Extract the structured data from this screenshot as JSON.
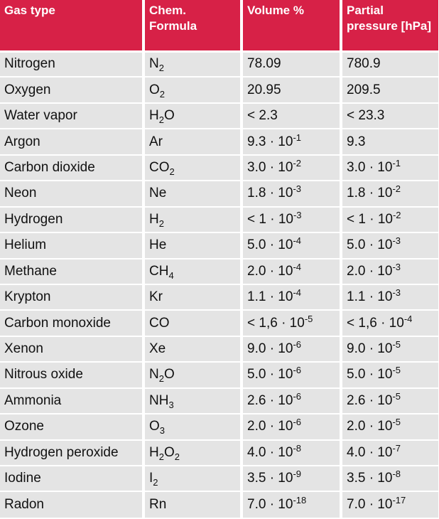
{
  "table": {
    "headers": [
      "Gas type",
      "Chem. Formula",
      "Volume %",
      "Partial pressure [hPa]"
    ],
    "rows": [
      {
        "gas": "Nitrogen",
        "formula": [
          [
            "t",
            "N"
          ],
          [
            "sub",
            "2"
          ]
        ],
        "volume": [
          [
            "t",
            "78.09"
          ]
        ],
        "pressure": [
          [
            "t",
            "780.9"
          ]
        ]
      },
      {
        "gas": "Oxygen",
        "formula": [
          [
            "t",
            "O"
          ],
          [
            "sub",
            "2"
          ]
        ],
        "volume": [
          [
            "t",
            "20.95"
          ]
        ],
        "pressure": [
          [
            "t",
            "209.5"
          ]
        ]
      },
      {
        "gas": "Water vapor",
        "formula": [
          [
            "t",
            "H"
          ],
          [
            "sub",
            "2"
          ],
          [
            "t",
            "O"
          ]
        ],
        "volume": [
          [
            "t",
            " < 2.3"
          ]
        ],
        "pressure": [
          [
            "t",
            "< 23.3"
          ]
        ]
      },
      {
        "gas": "Argon",
        "formula": [
          [
            "t",
            "Ar"
          ]
        ],
        "volume": [
          [
            "t",
            "9.3 · 10"
          ],
          [
            "sup",
            "-1"
          ]
        ],
        "pressure": [
          [
            "t",
            "9.3"
          ]
        ]
      },
      {
        "gas": "Carbon dioxide",
        "formula": [
          [
            "t",
            "CO"
          ],
          [
            "sub",
            "2"
          ]
        ],
        "volume": [
          [
            "t",
            "3.0 · 10"
          ],
          [
            "sup",
            "-2"
          ]
        ],
        "pressure": [
          [
            "t",
            "3.0 · 10"
          ],
          [
            "sup",
            "-1"
          ]
        ]
      },
      {
        "gas": "Neon",
        "formula": [
          [
            "t",
            "Ne"
          ]
        ],
        "volume": [
          [
            "t",
            "1.8 · 10"
          ],
          [
            "sup",
            "-3"
          ]
        ],
        "pressure": [
          [
            "t",
            "1.8 · 10"
          ],
          [
            "sup",
            "-2"
          ]
        ]
      },
      {
        "gas": "Hydrogen",
        "formula": [
          [
            "t",
            "H"
          ],
          [
            "sub",
            "2"
          ]
        ],
        "volume": [
          [
            "t",
            "< 1 · 10"
          ],
          [
            "sup",
            "-3"
          ]
        ],
        "pressure": [
          [
            "t",
            "< 1 · 10"
          ],
          [
            "sup",
            "-2"
          ]
        ]
      },
      {
        "gas": "Helium",
        "formula": [
          [
            "t",
            "He"
          ]
        ],
        "volume": [
          [
            "t",
            "5.0 · 10"
          ],
          [
            "sup",
            "-4"
          ]
        ],
        "pressure": [
          [
            "t",
            "5.0 · 10"
          ],
          [
            "sup",
            "-3"
          ]
        ]
      },
      {
        "gas": "Methane",
        "formula": [
          [
            "t",
            "CH"
          ],
          [
            "sub",
            "4"
          ]
        ],
        "volume": [
          [
            "t",
            "2.0 · 10"
          ],
          [
            "sup",
            "-4"
          ]
        ],
        "pressure": [
          [
            "t",
            "2.0 · 10"
          ],
          [
            "sup",
            "-3"
          ]
        ]
      },
      {
        "gas": "Krypton",
        "formula": [
          [
            "t",
            "Kr"
          ]
        ],
        "volume": [
          [
            "t",
            "1.1 · 10"
          ],
          [
            "sup",
            "-4"
          ]
        ],
        "pressure": [
          [
            "t",
            "1.1 · 10"
          ],
          [
            "sup",
            "-3"
          ]
        ]
      },
      {
        "gas": "Carbon monoxide",
        "formula": [
          [
            "t",
            "CO"
          ]
        ],
        "volume": [
          [
            "t",
            "< 1,6 · 10"
          ],
          [
            "sup",
            "-5"
          ]
        ],
        "pressure": [
          [
            "t",
            "< 1,6 · 10"
          ],
          [
            "sup",
            "-4"
          ]
        ]
      },
      {
        "gas": "Xenon",
        "formula": [
          [
            "t",
            "Xe"
          ]
        ],
        "volume": [
          [
            "t",
            "9.0 · 10"
          ],
          [
            "sup",
            "-6"
          ]
        ],
        "pressure": [
          [
            "t",
            "9.0 · 10"
          ],
          [
            "sup",
            "-5"
          ]
        ]
      },
      {
        "gas": "Nitrous oxide",
        "formula": [
          [
            "t",
            "N"
          ],
          [
            "sub",
            "2"
          ],
          [
            "t",
            "O"
          ]
        ],
        "volume": [
          [
            "t",
            "5.0 · 10"
          ],
          [
            "sup",
            "-6"
          ]
        ],
        "pressure": [
          [
            "t",
            "5.0 · 10"
          ],
          [
            "sup",
            "-5"
          ]
        ]
      },
      {
        "gas": "Ammonia",
        "formula": [
          [
            "t",
            "NH"
          ],
          [
            "sub",
            "3"
          ]
        ],
        "volume": [
          [
            "t",
            "2.6 · 10"
          ],
          [
            "sup",
            "-6"
          ]
        ],
        "pressure": [
          [
            "t",
            "2.6 · 10"
          ],
          [
            "sup",
            "-5"
          ]
        ]
      },
      {
        "gas": "Ozone",
        "formula": [
          [
            "t",
            "O"
          ],
          [
            "sub",
            "3"
          ]
        ],
        "volume": [
          [
            "t",
            "2.0 · 10"
          ],
          [
            "sup",
            "-6"
          ]
        ],
        "pressure": [
          [
            "t",
            "2.0 · 10"
          ],
          [
            "sup",
            "-5"
          ]
        ]
      },
      {
        "gas": "Hydrogen peroxide",
        "formula": [
          [
            "t",
            "H"
          ],
          [
            "sub",
            "2"
          ],
          [
            "t",
            "O"
          ],
          [
            "sub",
            "2"
          ]
        ],
        "volume": [
          [
            "t",
            "4.0 · 10"
          ],
          [
            "sup",
            "-8"
          ]
        ],
        "pressure": [
          [
            "t",
            "4.0 · 10"
          ],
          [
            "sup",
            "-7"
          ]
        ]
      },
      {
        "gas": "Iodine",
        "formula": [
          [
            "t",
            "I"
          ],
          [
            "sub",
            "2"
          ]
        ],
        "volume": [
          [
            "t",
            "3.5 · 10"
          ],
          [
            "sup",
            "-9"
          ]
        ],
        "pressure": [
          [
            "t",
            "3.5 · 10"
          ],
          [
            "sup",
            "-8"
          ]
        ]
      },
      {
        "gas": "Radon",
        "formula": [
          [
            "t",
            "Rn"
          ]
        ],
        "volume": [
          [
            "t",
            "7.0 · 10"
          ],
          [
            "sup",
            "-18"
          ]
        ],
        "pressure": [
          [
            "t",
            "7.0 · 10"
          ],
          [
            "sup",
            "-17"
          ]
        ]
      }
    ]
  }
}
